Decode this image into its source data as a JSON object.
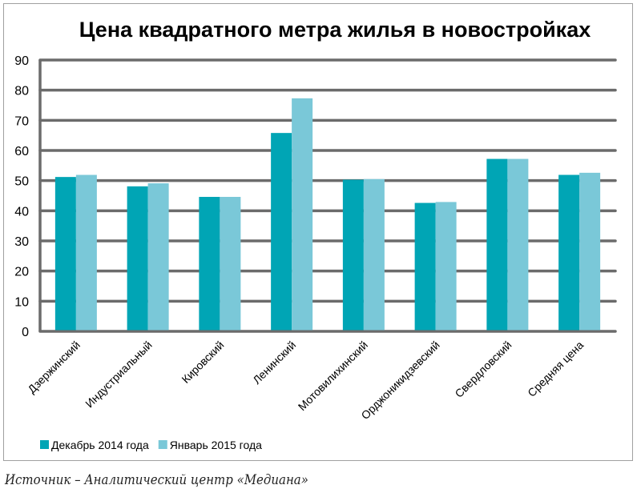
{
  "chart_data": {
    "type": "bar",
    "title": "Цена квадратного метра жилья в новостройках",
    "categories": [
      "Дзержинский",
      "Индустриальный",
      "Кировский",
      "Ленинский",
      "Мотовилихинский",
      "Орджоникидзевский",
      "Свердловский",
      "Средняя цена"
    ],
    "series": [
      {
        "name": "Декабрь 2014 года",
        "color": "#00a5b5",
        "values": [
          51.2,
          48.1,
          44.6,
          65.8,
          50.3,
          42.6,
          57.2,
          51.9
        ]
      },
      {
        "name": "Январь 2015 года",
        "color": "#7ac8d8",
        "values": [
          51.9,
          49.1,
          44.6,
          77.3,
          50.5,
          42.9,
          57.2,
          52.6
        ]
      }
    ],
    "yticks": [
      0,
      10,
      20,
      30,
      40,
      50,
      60,
      70,
      80,
      90
    ],
    "ylim": [
      0,
      90
    ],
    "grid": true,
    "legend": "bottom-left",
    "xlabel": "",
    "ylabel": ""
  },
  "source": "Источник – Аналитический центр «Медиана»"
}
